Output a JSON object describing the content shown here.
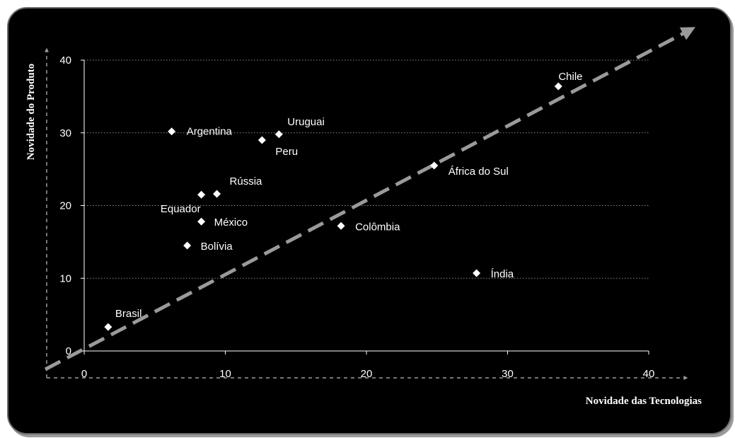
{
  "chart_data": {
    "type": "scatter",
    "xlabel": "Novidade das Tecnologias",
    "ylabel": "Novidade do Produto",
    "xlim": [
      0,
      40
    ],
    "ylim": [
      0,
      40
    ],
    "xticks": [
      0,
      10,
      20,
      30,
      40
    ],
    "yticks": [
      0,
      10,
      20,
      30,
      40
    ],
    "grid": "horizontal",
    "diagonal_reference": true,
    "marker": "diamond",
    "colors": {
      "background": "#000000",
      "points": "#ffffff",
      "text": "#ffffff",
      "grid": "#8c8c8c",
      "diagonal": "#9a9a9a"
    },
    "points": [
      {
        "label": "Brasil",
        "x": 1.7,
        "y": 3.3,
        "anchor": "start",
        "dx": 10,
        "dy": -14
      },
      {
        "label": "Argentina",
        "x": 6.2,
        "y": 30.2,
        "anchor": "start",
        "dx": 21,
        "dy": 5
      },
      {
        "label": "Uruguai",
        "x": 13.8,
        "y": 29.8,
        "anchor": "start",
        "dx": 12,
        "dy": -13
      },
      {
        "label": "Peru",
        "x": 12.6,
        "y": 29.0,
        "anchor": "start",
        "dx": 19,
        "dy": 21
      },
      {
        "label": "Rússia",
        "x": 9.4,
        "y": 21.6,
        "anchor": "start",
        "dx": 18,
        "dy": -13
      },
      {
        "label": "Equador",
        "x": 8.3,
        "y": 21.5,
        "anchor": "end",
        "dx": -1,
        "dy": 25
      },
      {
        "label": "México",
        "x": 8.3,
        "y": 17.8,
        "anchor": "start",
        "dx": 18,
        "dy": 6
      },
      {
        "label": "Bolívia",
        "x": 7.3,
        "y": 14.5,
        "anchor": "start",
        "dx": 19,
        "dy": 6
      },
      {
        "label": "Colômbia",
        "x": 18.2,
        "y": 17.2,
        "anchor": "start",
        "dx": 20,
        "dy": 6
      },
      {
        "label": "África do Sul",
        "x": 24.8,
        "y": 25.5,
        "anchor": "start",
        "dx": 20,
        "dy": 13
      },
      {
        "label": "Chile",
        "x": 33.6,
        "y": 36.4,
        "anchor": "start",
        "dx": 0,
        "dy": -9
      },
      {
        "label": "Índia",
        "x": 27.8,
        "y": 10.7,
        "anchor": "start",
        "dx": 20,
        "dy": 6
      }
    ]
  }
}
